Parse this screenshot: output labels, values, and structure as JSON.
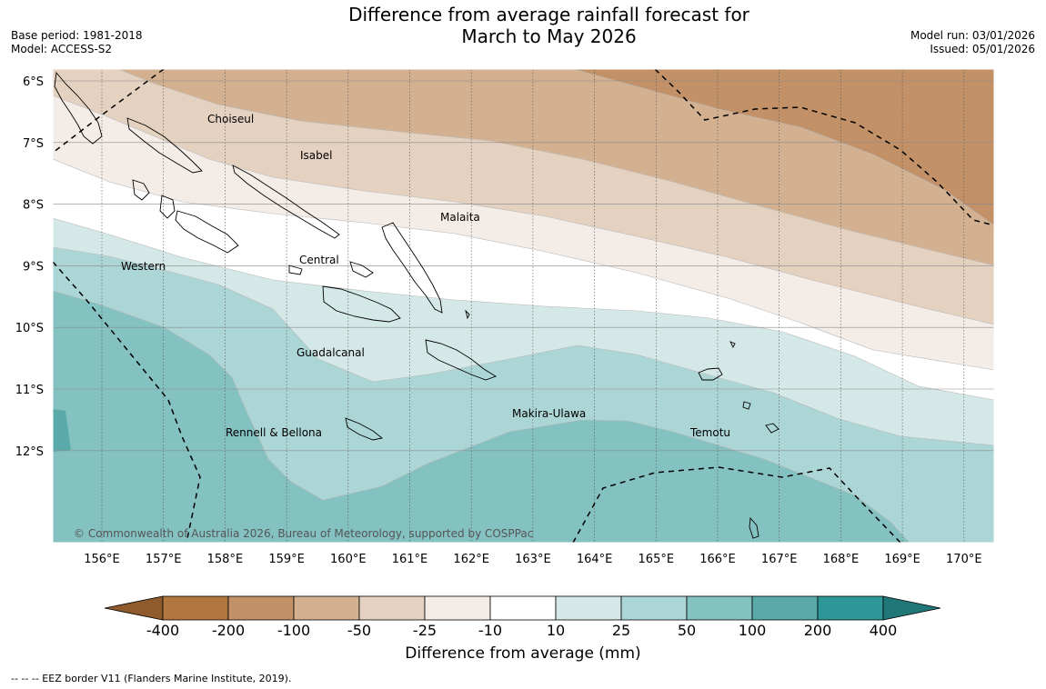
{
  "title_line1": "Difference from average rainfall forecast for",
  "title_line2": "March to May 2026",
  "base_period": "Base period: 1981-2018",
  "model": "Model: ACCESS-S2",
  "model_run": "Model run: 03/01/2026",
  "issued": "Issued: 05/01/2026",
  "copyright": "© Commonwealth of Australia 2026, Bureau of Meteorology, supported by COSPPac",
  "footnote": "--  --  -- EEZ border V11 (Flanders Marine Institute, 2019).",
  "lat_labels": [
    "6°S",
    "7°S",
    "8°S",
    "9°S",
    "10°S",
    "11°S",
    "12°S"
  ],
  "lon_labels": [
    "156°E",
    "157°E",
    "158°E",
    "159°E",
    "160°E",
    "161°E",
    "162°E",
    "163°E",
    "164°E",
    "165°E",
    "166°E",
    "167°E",
    "168°E",
    "169°E",
    "170°E"
  ],
  "provinces": [
    "Choiseul",
    "Isabel",
    "Malaita",
    "Central",
    "Western",
    "Guadalcanal",
    "Makira-Ulawa",
    "Rennell & Bellona",
    "Temotu"
  ],
  "colorbar": {
    "label": "Difference from average (mm)",
    "ticks": [
      "-400",
      "-200",
      "-100",
      "-50",
      "-25",
      "-10",
      "10",
      "25",
      "50",
      "100",
      "200",
      "400"
    ],
    "colors": {
      "lt_-400": "#8f5a2c",
      "b1": "#b0773f",
      "b2": "#c29168",
      "b3": "#d3b08f",
      "b4": "#e4d1c0",
      "b5": "#f4ece7",
      "b6": "#ffffff",
      "b7": "#d5e8e8",
      "b8": "#acd5d5",
      "b9": "#84c1c1",
      "b10": "#5aaaaa",
      "b11": "#2e9797",
      "gt_400": "#207777"
    }
  }
}
